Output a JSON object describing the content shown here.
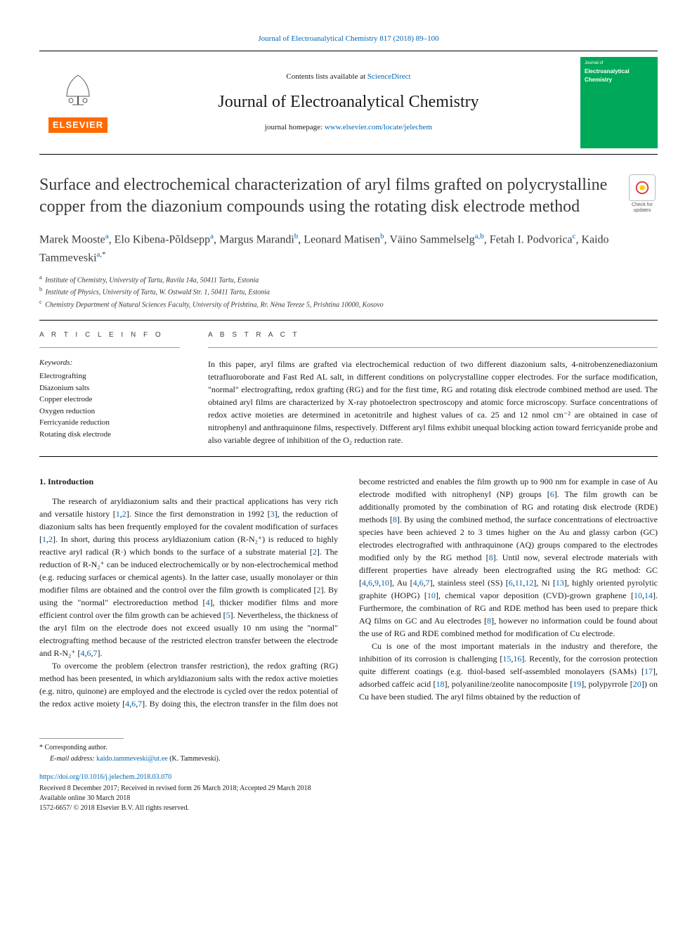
{
  "header": {
    "citation": "Journal of Electroanalytical Chemistry 817 (2018) 89–100",
    "contents_prefix": "Contents lists available at ",
    "contents_link": "ScienceDirect",
    "journal_name": "Journal of Electroanalytical Chemistry",
    "homepage_prefix": "journal homepage: ",
    "homepage_link": "www.elsevier.com/locate/jelechem",
    "publisher": "ELSEVIER",
    "cover_small_top": "Journal of",
    "cover_title1": "Electroanalytical",
    "cover_title2": "Chemistry",
    "crossmark_text": "Check for updates"
  },
  "article": {
    "title": "Surface and electrochemical characterization of aryl films grafted on polycrystalline copper from the diazonium compounds using the rotating disk electrode method",
    "authors_html": "Marek Mooste<sup class=\"affref\">a</sup>, Elo Kibena-Põldsepp<sup class=\"affref\">a</sup>, Margus Marandi<sup class=\"affref\">b</sup>, Leonard Matisen<sup class=\"affref\">b</sup>, Väino Sammelselg<sup class=\"affref\">a,b</sup>, Fetah I. Podvorica<sup class=\"affref\">c</sup>, Kaido Tammeveski<sup class=\"affref\">a,</sup><sup>*</sup>",
    "affiliations": [
      {
        "label": "a",
        "text": "Institute of Chemistry, University of Tartu, Ravila 14a, 50411 Tartu, Estonia"
      },
      {
        "label": "b",
        "text": "Institute of Physics, University of Tartu, W. Ostwald Str. 1, 50411 Tartu, Estonia"
      },
      {
        "label": "c",
        "text": "Chemistry Department of Natural Sciences Faculty, University of Prishtina, Rr. Nëna Tereze 5, Prishtina 10000, Kosovo"
      }
    ]
  },
  "info": {
    "article_info_head": "A R T I C L E  I N F O",
    "abstract_head": "A B S T R A C T",
    "keywords_head": "Keywords:",
    "keywords": [
      "Electrografting",
      "Diazonium salts",
      "Copper electrode",
      "Oxygen reduction",
      "Ferricyanide reduction",
      "Rotating disk electrode"
    ],
    "abstract": "In this paper, aryl films are grafted via electrochemical reduction of two different diazonium salts, 4-nitrobenzenediazonium tetrafluoroborate and Fast Red AL salt, in different conditions on polycrystalline copper electrodes. For the surface modification, \"normal\" electrografting, redox grafting (RG) and for the first time, RG and rotating disk electrode combined method are used. The obtained aryl films are characterized by X-ray photoelectron spectroscopy and atomic force microscopy. Surface concentrations of redox active moieties are determined in acetonitrile and highest values of ca. 25 and 12 nmol cm⁻² are obtained in case of nitrophenyl and anthraquinone films, respectively. Different aryl films exhibit unequal blocking action toward ferricyanide probe and also variable degree of inhibition of the O₂ reduction rate."
  },
  "body": {
    "section_title": "1. Introduction",
    "paragraphs": [
      "The research of aryldiazonium salts and their practical applications has very rich and versatile history [<a>1</a>,<a>2</a>]. Since the first demonstration in 1992 [<a>3</a>], the reduction of diazonium salts has been frequently employed for the covalent modification of surfaces [<a>1</a>,<a>2</a>]. In short, during this process aryldiazonium cation (R-N₂⁺) is reduced to highly reactive aryl radical (R·) which bonds to the surface of a substrate material [<a>2</a>]. The reduction of R-N₂⁺ can be induced electrochemically or by non-electrochemical method (e.g. reducing surfaces or chemical agents). In the latter case, usually monolayer or thin modifier films are obtained and the control over the film growth is complicated [<a>2</a>]. By using the \"normal\" electroreduction method [<a>4</a>], thicker modifier films and more efficient control over the film growth can be achieved [<a>5</a>]. Nevertheless, the thickness of the aryl film on the electrode does not exceed usually 10 nm using the \"normal\" electrografting method because of the restricted electron transfer between the electrode and R-N₂⁺ [<a>4</a>,<a>6</a>,<a>7</a>].",
      "To overcome the problem (electron transfer restriction), the redox grafting (RG) method has been presented, in which aryldiazonium salts with the redox active moieties (e.g. nitro, quinone) are employed and the electrode is cycled over the redox potential of the redox active moiety [<a>4</a>,<a>6</a>,<a>7</a>]. By doing this, the electron transfer in the film does not become restricted and enables the film growth up to 900 nm for example in case of Au electrode modified with nitrophenyl (NP) groups [<a>6</a>]. The film growth can be additionally promoted by the combination of RG and rotating disk electrode (RDE) methods [<a>8</a>]. By using the combined method, the surface concentrations of electroactive species have been achieved 2 to 3 times higher on the Au and glassy carbon (GC) electrodes electrografted with anthraquinone (AQ) groups compared to the electrodes modified only by the RG method [<a>8</a>]. Until now, several electrode materials with different properties have already been electrografted using the RG method: GC [<a>4</a>,<a>6</a>,<a>9</a>,<a>10</a>], Au [<a>4</a>,<a>6</a>,<a>7</a>], stainless steel (SS) [<a>6</a>,<a>11</a>,<a>12</a>], Ni [<a>13</a>], highly oriented pyrolytic graphite (HOPG) [<a>10</a>], chemical vapor deposition (CVD)-grown graphene [<a>10</a>,<a>14</a>]. Furthermore, the combination of RG and RDE method has been used to prepare thick AQ films on GC and Au electrodes [<a>8</a>], however no information could be found about the use of RG and RDE combined method for modification of Cu electrode.",
      "Cu is one of the most important materials in the industry and therefore, the inhibition of its corrosion is challenging [<a>15</a>,<a>16</a>]. Recently, for the corrosion protection quite different coatings (e.g. thiol-based self-assembled monolayers (SAMs) [<a>17</a>], adsorbed caffeic acid [<a>18</a>], polyaniline/zeolite nanocomposite [<a>19</a>], polypyrrole [<a>20</a>]) on Cu have been studied. The aryl films obtained by the reduction of"
    ]
  },
  "footer": {
    "corr_label": "* Corresponding author.",
    "email_label": "E-mail address: ",
    "email": "kaido.tammeveski@ut.ee",
    "email_paren": " (K. Tammeveski).",
    "doi": "https://doi.org/10.1016/j.jelechem.2018.03.070",
    "received": "Received 8 December 2017; Received in revised form 26 March 2018; Accepted 29 March 2018",
    "available": "Available online 30 March 2018",
    "copyright": "1572-6657/ © 2018 Elsevier B.V. All rights reserved."
  },
  "colors": {
    "link": "#0066b3",
    "elsevier_orange": "#ff6a00",
    "cover_green": "#00a859"
  }
}
